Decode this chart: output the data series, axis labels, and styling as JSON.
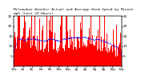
{
  "title": "Milwaukee Weather Actual and Average Wind Speed by Minute mph (Last 24 Hours)",
  "bg_color": "#ffffff",
  "plot_bg_color": "#ffffff",
  "bar_color": "#ff0000",
  "line_color": "#0000ff",
  "grid_color": "#888888",
  "n_points": 1440,
  "ylim": [
    0,
    25
  ],
  "y_ticks": [
    5,
    10,
    15,
    20,
    25
  ],
  "title_fontsize": 3.2,
  "tick_fontsize": 3.0,
  "line_width": 0.5,
  "title_bg_color": "#c0c0c0"
}
